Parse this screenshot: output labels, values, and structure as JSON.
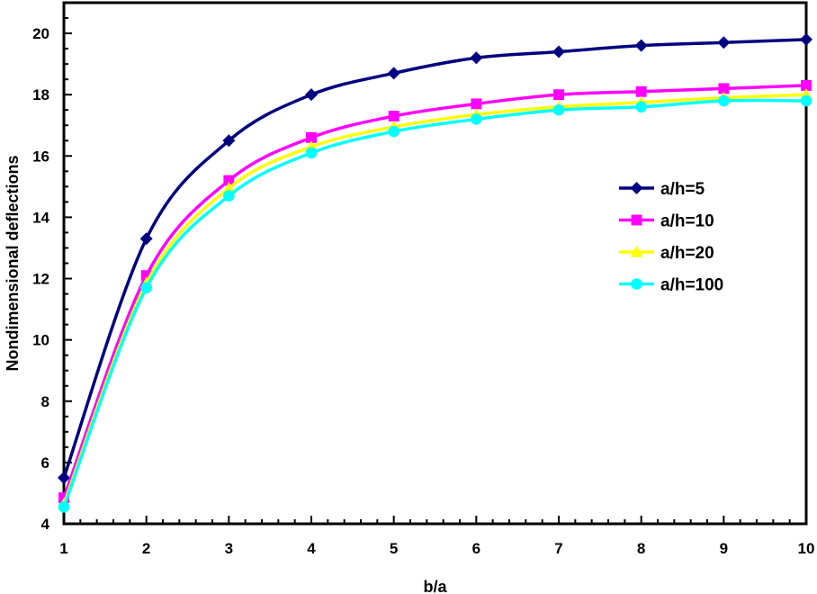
{
  "chart_data": {
    "type": "line",
    "title": "",
    "xlabel": "b/a",
    "ylabel": "Nondimensional deflections",
    "xlim": [
      1,
      10
    ],
    "ylim": [
      4,
      21
    ],
    "xticks": [
      1,
      2,
      3,
      4,
      5,
      6,
      7,
      8,
      9,
      10
    ],
    "yticks": [
      4,
      6,
      8,
      10,
      12,
      14,
      16,
      18,
      20
    ],
    "grid": false,
    "legend_position": "center-right",
    "x": [
      1,
      2,
      3,
      4,
      5,
      6,
      7,
      8,
      9,
      10
    ],
    "series": [
      {
        "name": "a/h=5",
        "color": "#000080",
        "marker": "diamond",
        "values": [
          5.5,
          13.3,
          16.5,
          18.0,
          18.7,
          19.2,
          19.4,
          19.6,
          19.7,
          19.8
        ]
      },
      {
        "name": "a/h=10",
        "color": "#FF00FF",
        "marker": "square",
        "values": [
          4.85,
          12.1,
          15.2,
          16.6,
          17.3,
          17.7,
          18.0,
          18.1,
          18.2,
          18.3
        ]
      },
      {
        "name": "a/h=20",
        "color": "#FFFF00",
        "marker": "triangle",
        "values": [
          4.65,
          11.85,
          14.95,
          16.3,
          16.95,
          17.35,
          17.6,
          17.75,
          17.9,
          18.0
        ]
      },
      {
        "name": "a/h=100",
        "color": "#00FFFF",
        "marker": "circle",
        "values": [
          4.55,
          11.7,
          14.7,
          16.1,
          16.8,
          17.2,
          17.5,
          17.6,
          17.8,
          17.8
        ]
      }
    ]
  }
}
